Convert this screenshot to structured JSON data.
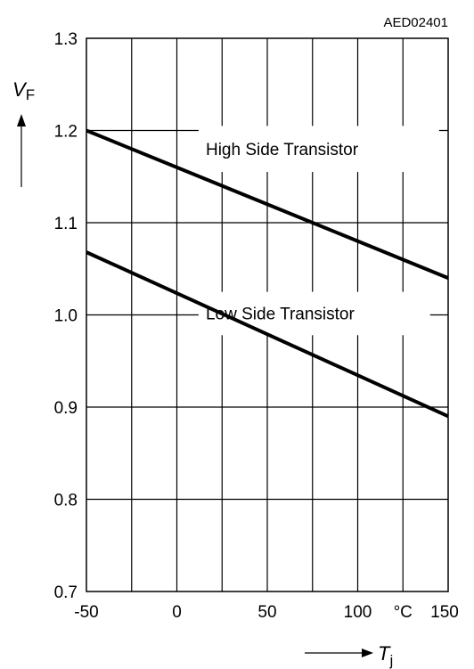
{
  "chart_data": {
    "type": "line",
    "doc_id": "AED02401",
    "xlim": [
      -50,
      150
    ],
    "ylim": [
      0.7,
      1.3
    ],
    "x_ticks": [
      "-50",
      "0",
      "50",
      "100",
      "150"
    ],
    "x_tick_values": [
      -50,
      0,
      50,
      100,
      150
    ],
    "x_unit": "°C",
    "y_ticks": [
      "0.7",
      "0.8",
      "0.9",
      "1.0",
      "1.1",
      "1.2",
      "1.3"
    ],
    "y_tick_values": [
      0.7,
      0.8,
      0.9,
      1.0,
      1.1,
      1.2,
      1.3
    ],
    "ylabel_main": "V",
    "ylabel_sub": "F",
    "xlabel_main": "T",
    "xlabel_sub": "j",
    "grid": true,
    "series": [
      {
        "name": "High Side Transistor",
        "x": [
          -50,
          150
        ],
        "values": [
          1.2,
          1.04
        ]
      },
      {
        "name": "Low Side Transistor",
        "x": [
          -50,
          150
        ],
        "values": [
          1.068,
          0.89
        ]
      }
    ]
  }
}
